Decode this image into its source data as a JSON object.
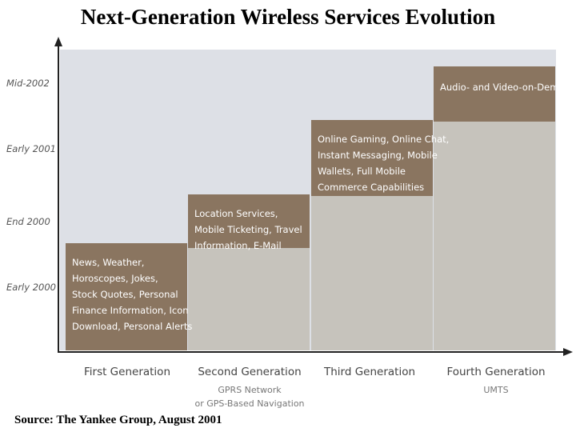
{
  "title": "Next-Generation Wireless Services Evolution",
  "source": "Source: The Yankee Group, August 2001",
  "chart_data": {
    "type": "bar",
    "y_tick_labels": [
      "Early 2000",
      "End 2000",
      "Early 2001",
      "Mid-2002"
    ],
    "categories": [
      {
        "name": "First Generation",
        "subtitle": [],
        "level": 1,
        "services": [
          "News, Weather,",
          "Horoscopes, Jokes,",
          "Stock Quotes, Personal",
          "Finance Information, Icon",
          "Download, Personal Alerts"
        ]
      },
      {
        "name": "Second Generation",
        "subtitle": [
          "GPRS Network",
          "or GPS-Based Navigation"
        ],
        "level": 2,
        "services": [
          "Location Services,",
          "Mobile Ticketing, Travel",
          "Information, E-Mail"
        ]
      },
      {
        "name": "Third Generation",
        "subtitle": [],
        "level": 3,
        "services": [
          "Online Gaming, Online Chat,",
          "Instant Messaging, Mobile",
          "Wallets, Full Mobile",
          "Commerce Capabilities"
        ]
      },
      {
        "name": "Fourth Generation",
        "subtitle": [
          "UMTS"
        ],
        "level": 4,
        "services": [
          "Audio- and Video-on-Demand"
        ]
      }
    ],
    "colors": {
      "plot_background": "#dde0e6",
      "bar": "#c6c3bc",
      "service_box": "#8a7560",
      "axis": "#222222"
    }
  }
}
